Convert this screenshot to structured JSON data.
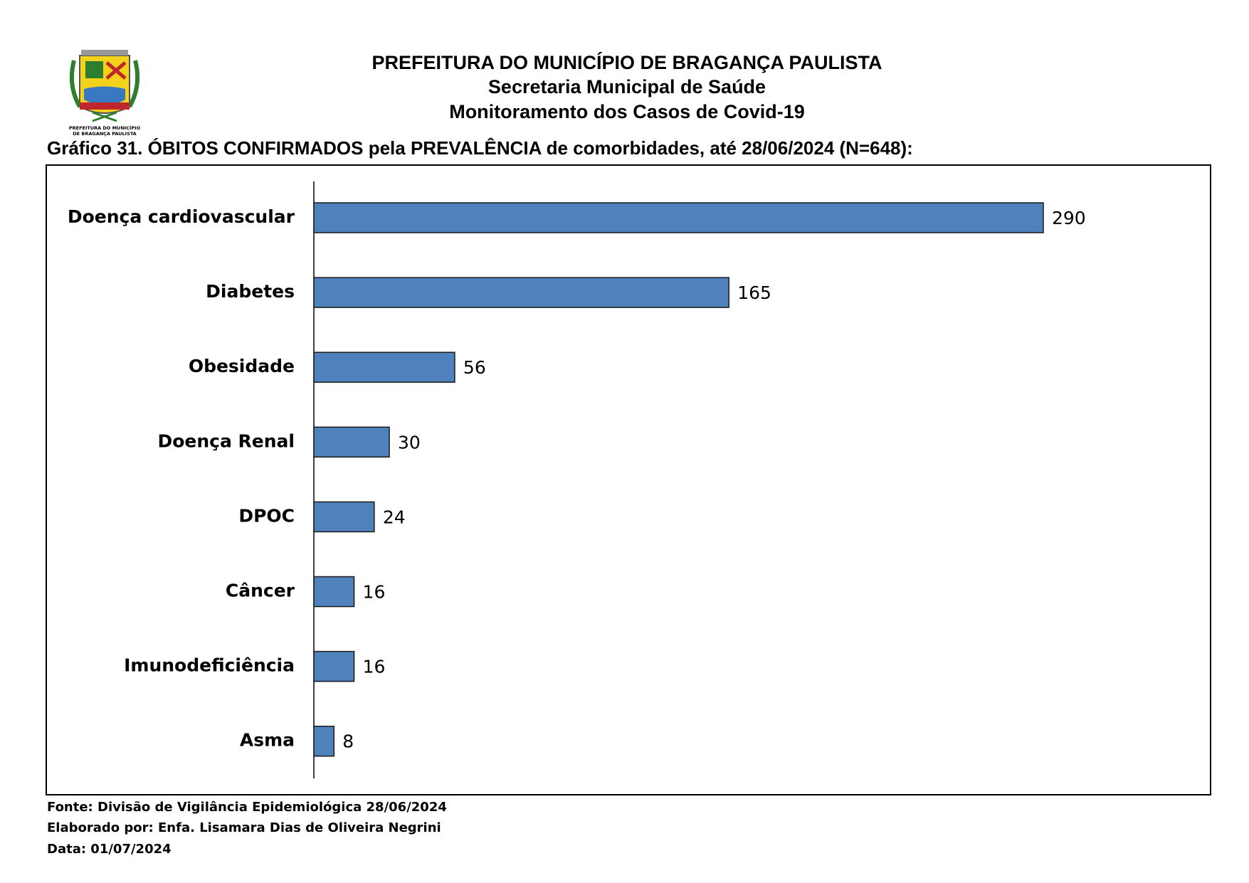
{
  "header": {
    "lines": [
      "PREFEITURA DO MUNICÍPIO DE BRAGANÇA PAULISTA",
      "Secretaria Municipal de Saúde",
      "Monitoramento dos Casos de Covid-19"
    ],
    "logo_text": [
      "PREFEITURA DO MUNICÍPIO",
      "DE BRAGANÇA PAULISTA"
    ]
  },
  "chart_data": {
    "type": "bar",
    "orientation": "horizontal",
    "title": "Gráfico 31. ÓBITOS CONFIRMADOS pela PREVALÊNCIA de comorbidades, até 28/06/2024 (N=648):",
    "categories": [
      "Doença cardiovascular",
      "Diabetes",
      "Obesidade",
      "Doença Renal",
      "DPOC",
      "Câncer",
      "Imunodeficiência",
      "Asma"
    ],
    "values": [
      290,
      165,
      56,
      30,
      24,
      16,
      16,
      8
    ],
    "color": "#4f81bd"
  },
  "footer": [
    "Fonte: Divisão de Vigilância Epidemiológica 28/06/2024",
    "Elaborado por: Enfa. Lisamara Dias de Oliveira Negrini",
    "Data: 01/07/2024"
  ]
}
